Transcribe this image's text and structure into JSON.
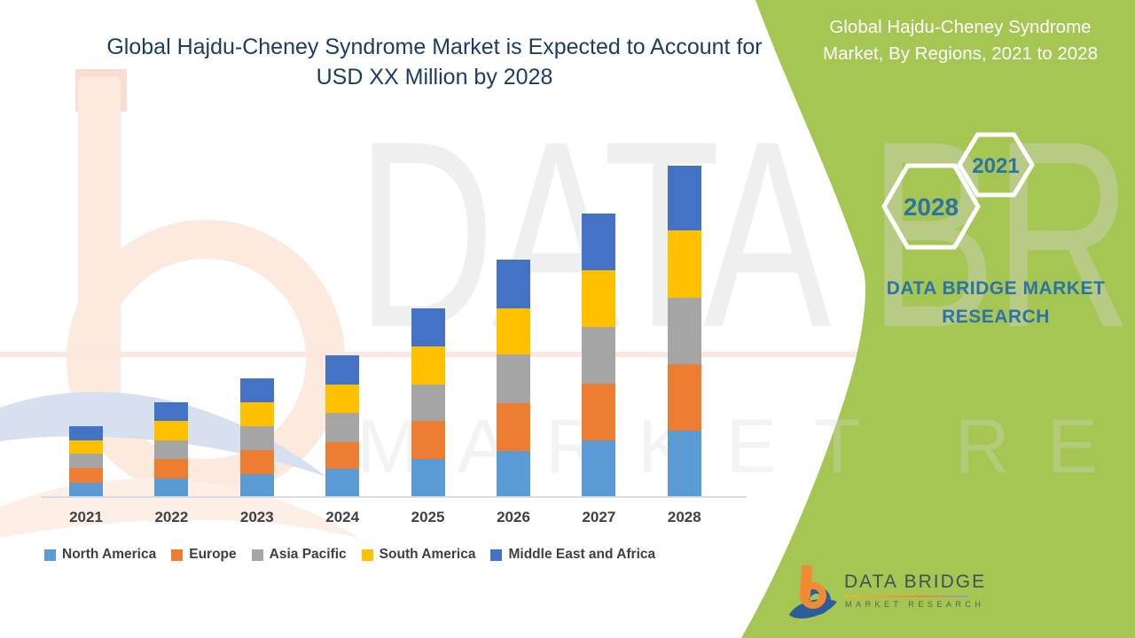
{
  "header": {
    "title_line1": "Global Hajdu-Cheney Syndrome Market is Expected to Account for",
    "title_line2": "USD XX Million by 2028"
  },
  "side_panel": {
    "background_color": "#a5c653",
    "title_line1": "Global Hajdu-Cheney Syndrome",
    "title_line2": "Market, By Regions, 2021 to 2028",
    "hexagons": [
      {
        "label": "2028"
      },
      {
        "label": "2021"
      }
    ],
    "hexagon_text_color": "#2e73a8",
    "brand_text": "DATA BRIDGE MARKET RESEARCH"
  },
  "chart_data": {
    "type": "bar",
    "stacked": true,
    "title": "Global Hajdu-Cheney Syndrome Market is Expected to Account for USD XX Million by 2028",
    "categories": [
      "2021",
      "2022",
      "2023",
      "2024",
      "2025",
      "2026",
      "2027",
      "2028"
    ],
    "series": [
      {
        "name": "North America",
        "color": "#5B9BD5",
        "values": [
          16,
          21,
          26,
          32,
          43,
          52,
          64,
          75
        ]
      },
      {
        "name": "Europe",
        "color": "#ED7D31",
        "values": [
          17,
          22,
          27,
          30,
          43,
          54,
          64,
          75
        ]
      },
      {
        "name": "Asia Pacific",
        "color": "#A5A5A5",
        "values": [
          16,
          21,
          27,
          33,
          41,
          55,
          64,
          75
        ]
      },
      {
        "name": "South America",
        "color": "#FFC000",
        "values": [
          15,
          22,
          27,
          32,
          43,
          52,
          64,
          76
        ]
      },
      {
        "name": "Middle East and Africa",
        "color": "#4472C4",
        "values": [
          16,
          21,
          27,
          33,
          43,
          55,
          64,
          73
        ]
      }
    ],
    "stack_order": "series listed bottom-to-top",
    "totals": [
      80,
      107,
      134,
      160,
      213,
      268,
      320,
      374
    ],
    "value_axis": {
      "visible": false,
      "note": "no y-axis shown; values are relative estimates (USD XX Million not disclosed)"
    },
    "grid": false,
    "legend_position": "bottom"
  },
  "watermark": {
    "big_text": "DATA BRIDGE",
    "small_text": "MARKET RESEARCH"
  },
  "footer_logo": {
    "title": "DATA BRIDGE",
    "subtitle": "MARKET RESEARCH"
  }
}
